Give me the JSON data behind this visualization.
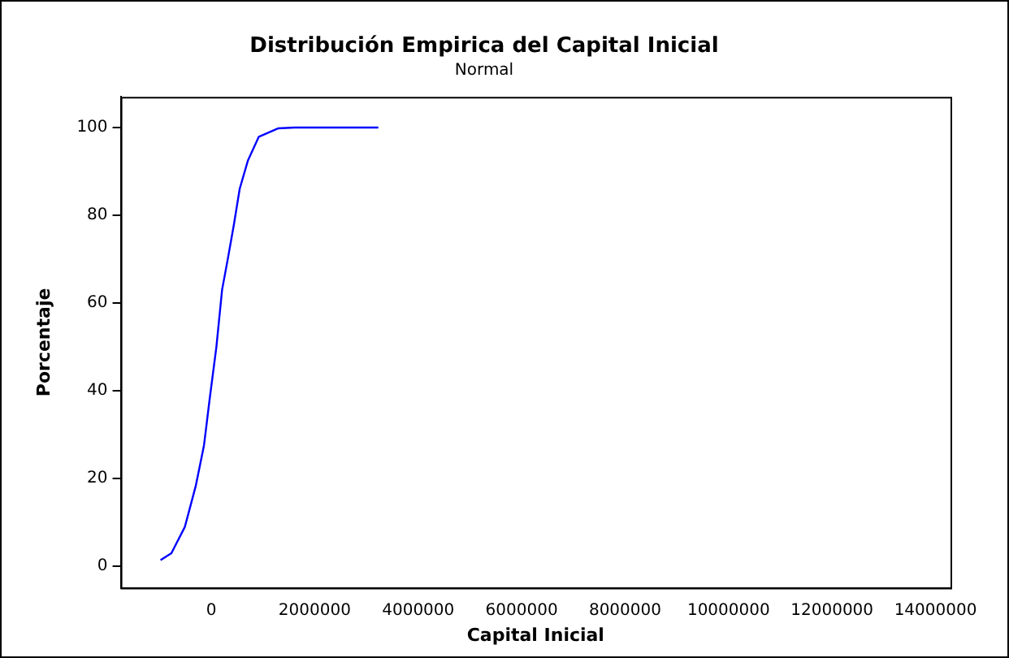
{
  "chart_data": {
    "type": "line",
    "title": "Distribución Empirica del Capital Inicial",
    "subtitle": "Normal",
    "xlabel": "Capital Inicial",
    "ylabel": "Porcentaje",
    "series": [
      {
        "color": "#0000ff",
        "x": [
          -980000,
          -770000,
          -510000,
          -300000,
          -140000,
          -30000,
          100000,
          210000,
          320000,
          440000,
          550000,
          710000,
          920000,
          1290000,
          1610000,
          3230000
        ],
        "values": [
          1.3,
          2.9,
          8.9,
          18.2,
          27.5,
          38.1,
          50,
          63,
          70,
          78,
          86,
          92.5,
          97.9,
          99.8,
          100,
          100
        ]
      }
    ],
    "xlim": [
      -1750000,
      14290000
    ],
    "xticks": [
      0,
      2000000,
      4000000,
      6000000,
      8000000,
      10000000,
      12000000,
      14000000
    ],
    "ylim": [
      -5,
      107
    ],
    "yticks": [
      0,
      20,
      40,
      60,
      80,
      100
    ],
    "grid": false,
    "legend": false,
    "marker": "none",
    "line_style": "solid"
  }
}
